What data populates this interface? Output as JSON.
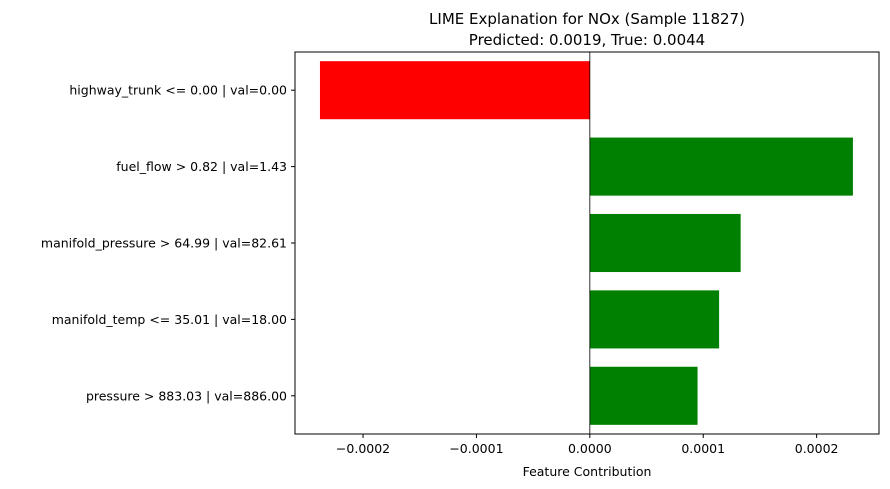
{
  "chart_data": {
    "type": "bar",
    "orientation": "horizontal",
    "title_line1": "LIME Explanation for NOx (Sample 11827)",
    "title_line2": "Predicted: 0.0019, True: 0.0044",
    "xlabel": "Feature Contribution",
    "ylabel": "",
    "xlim": [
      -0.00026,
      0.000255
    ],
    "xticks": [
      -0.0002,
      -0.0001,
      0.0,
      0.0001,
      0.0002
    ],
    "xtick_labels": [
      "−0.0002",
      "−0.0001",
      "0.0000",
      "0.0001",
      "0.0002"
    ],
    "zero_line": true,
    "grid": false,
    "categories": [
      "highway_trunk <= 0.00 | val=0.00",
      "fuel_flow > 0.82 | val=1.43",
      "manifold_pressure > 64.99 | val=82.61",
      "manifold_temp <= 35.01 | val=18.00",
      "pressure > 883.03 | val=886.00"
    ],
    "values": [
      -0.000238,
      0.000232,
      0.000133,
      0.000114,
      9.5e-05
    ],
    "colors": {
      "positive": "#008000",
      "negative": "#ff0000",
      "axis": "#000000",
      "zero_line": "#000000"
    }
  }
}
